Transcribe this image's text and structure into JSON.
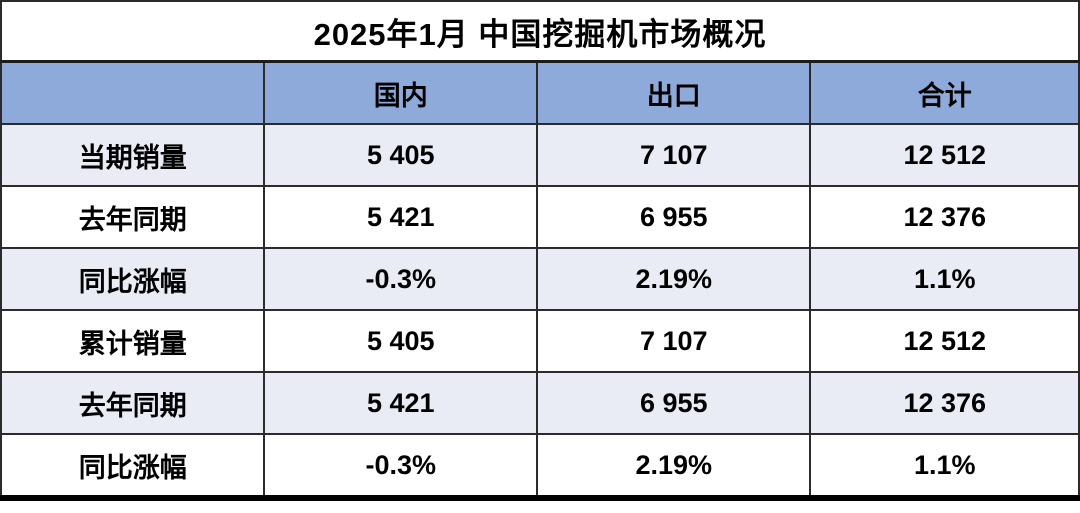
{
  "title": "2025年1月 中国挖掘机市场概况",
  "colors": {
    "header_bg": "#8EAADB",
    "row_alt_bg": "#E9EBF5",
    "row_bg": "#FFFFFF",
    "border": "#2B2B2B",
    "bottom_border": "#000000",
    "text": "#000000"
  },
  "table": {
    "columns": [
      "",
      "国内",
      "出口",
      "合计"
    ],
    "rows": [
      {
        "label": "当期销量",
        "values": [
          "5 405",
          "7 107",
          "12 512"
        ]
      },
      {
        "label": "去年同期",
        "values": [
          "5 421",
          "6 955",
          "12 376"
        ]
      },
      {
        "label": "同比涨幅",
        "values": [
          "-0.3%",
          "2.19%",
          "1.1%"
        ]
      },
      {
        "label": "累计销量",
        "values": [
          "5 405",
          "7 107",
          "12 512"
        ]
      },
      {
        "label": "去年同期",
        "values": [
          "5 421",
          "6 955",
          "12 376"
        ]
      },
      {
        "label": "同比涨幅",
        "values": [
          "-0.3%",
          "2.19%",
          "1.1%"
        ]
      }
    ]
  },
  "chart_data": {
    "type": "table",
    "title": "2025年1月 中国挖掘机市场概况",
    "columns": [
      "",
      "国内",
      "出口",
      "合计"
    ],
    "rows": [
      [
        "当期销量",
        "5 405",
        "7 107",
        "12 512"
      ],
      [
        "去年同期",
        "5 421",
        "6 955",
        "12 376"
      ],
      [
        "同比涨幅",
        "-0.3%",
        "2.19%",
        "1.1%"
      ],
      [
        "累计销量",
        "5 405",
        "7 107",
        "12 512"
      ],
      [
        "去年同期",
        "5 421",
        "6 955",
        "12 376"
      ],
      [
        "同比涨幅",
        "-0.3%",
        "2.19%",
        "1.1%"
      ]
    ]
  }
}
